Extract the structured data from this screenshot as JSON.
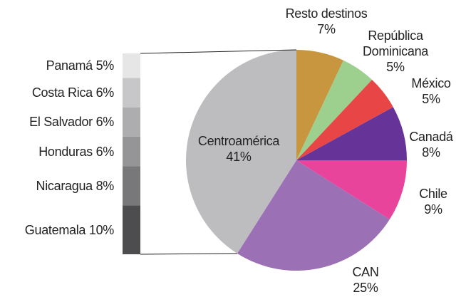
{
  "chart_data": {
    "type": "pie",
    "categories": [
      "Resto destinos",
      "República Dominicana",
      "México",
      "Canadá",
      "Chile",
      "CAN",
      "Centroamérica"
    ],
    "values": [
      7,
      5,
      5,
      8,
      9,
      25,
      41
    ],
    "value_labels": [
      "7%",
      "5%",
      "5%",
      "8%",
      "9%",
      "25%",
      "41%"
    ],
    "colors": [
      "#c8963e",
      "#9dcf8f",
      "#e84646",
      "#663399",
      "#e8449b",
      "#9b70b5",
      "#bdbdc0"
    ],
    "breakdown": {
      "categories": [
        "Panamá",
        "Costa Rica",
        "El Salvador",
        "Honduras",
        "Nicaragua",
        "Guatemala"
      ],
      "values": [
        5,
        6,
        6,
        6,
        8,
        10
      ],
      "value_labels": [
        "5%",
        "6%",
        "6%",
        "6%",
        "8%",
        "10%"
      ],
      "colors": [
        "#e6e6e7",
        "#c7c7c9",
        "#adadb0",
        "#959598",
        "#78787b",
        "#4d4d4f"
      ]
    }
  }
}
